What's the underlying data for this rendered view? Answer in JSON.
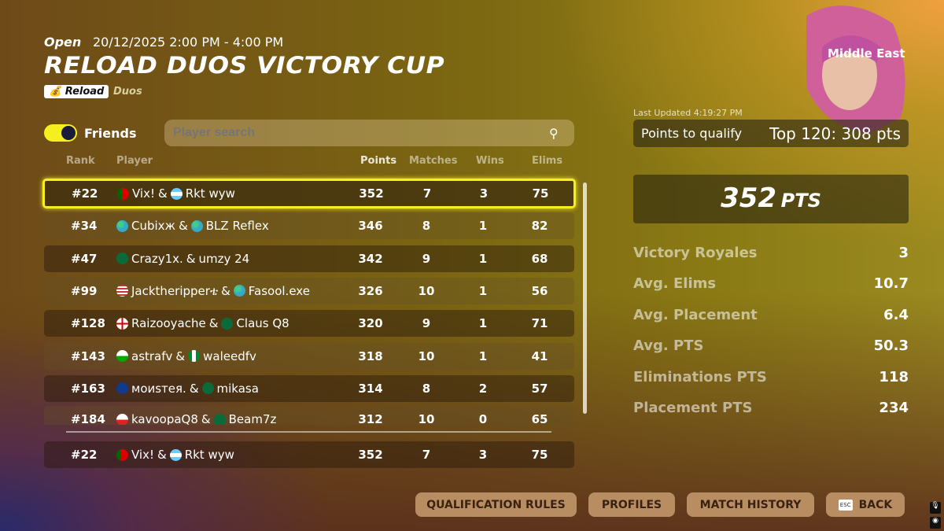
{
  "event": {
    "status": "Open",
    "datetime": "20/12/2025 2:00 PM - 4:00 PM",
    "title": "RELOAD DUOS VICTORY CUP",
    "mode_badge": "Reload",
    "mode_type": "Duos",
    "region": "Middle East"
  },
  "filters": {
    "friends_label": "Friends",
    "friends_on": true,
    "search_placeholder": "Player search",
    "search_value": ""
  },
  "columns": {
    "rank": "Rank",
    "player": "Player",
    "points": "Points",
    "matches": "Matches",
    "wins": "Wins",
    "elims": "Elims"
  },
  "rows": [
    {
      "rank": "#22",
      "p1": "Vix!",
      "f1": "portugal",
      "p2": "Rkt wyw",
      "f2": "argentina",
      "points": "352",
      "matches": "7",
      "wins": "3",
      "elims": "75",
      "selected": true
    },
    {
      "rank": "#34",
      "p1": "Cubixж",
      "f1": "globe",
      "p2": "BLZ Reflex",
      "f2": "globe",
      "points": "346",
      "matches": "8",
      "wins": "1",
      "elims": "82"
    },
    {
      "rank": "#47",
      "p1": "Crazy1x.",
      "f1": "saudi-arabia",
      "p2": "umzy 24",
      "f2": "",
      "points": "342",
      "matches": "9",
      "wins": "1",
      "elims": "68"
    },
    {
      "rank": "#99",
      "p1": "Jacktheripperቴ",
      "f1": "usa",
      "p2": "Fasool.exe",
      "f2": "globe",
      "points": "326",
      "matches": "10",
      "wins": "1",
      "elims": "56"
    },
    {
      "rank": "#128",
      "p1": "Raizooyache",
      "f1": "england",
      "p2": "Claus Q8",
      "f2": "saudi-arabia",
      "points": "320",
      "matches": "9",
      "wins": "1",
      "elims": "71"
    },
    {
      "rank": "#143",
      "p1": "astrafv",
      "f1": "wales",
      "p2": "waleedfv",
      "f2": "nigeria",
      "points": "318",
      "matches": "10",
      "wins": "1",
      "elims": "41"
    },
    {
      "rank": "#163",
      "p1": "моиsтея.",
      "f1": "uk",
      "p2": "mikasa",
      "f2": "saudi-arabia",
      "points": "314",
      "matches": "8",
      "wins": "2",
      "elims": "57"
    },
    {
      "rank": "#184",
      "p1": "kavoopaQ8",
      "f1": "poland",
      "p2": "Beam7z",
      "f2": "saudi-arabia",
      "points": "312",
      "matches": "10",
      "wins": "0",
      "elims": "65"
    }
  ],
  "pinned": {
    "rank": "#22",
    "p1": "Vix!",
    "f1": "portugal",
    "p2": "Rkt wyw",
    "f2": "argentina",
    "points": "352",
    "matches": "7",
    "wins": "3",
    "elims": "75"
  },
  "summary": {
    "last_updated": "Last Updated 4:19:27 PM",
    "qualify_label": "Points to qualify",
    "qualify_value": "Top 120: 308 pts",
    "total_points": "352",
    "total_unit": "PTS",
    "stats": [
      {
        "label": "Victory Royales",
        "value": "3"
      },
      {
        "label": "Avg. Elims",
        "value": "10.7"
      },
      {
        "label": "Avg. Placement",
        "value": "6.4"
      },
      {
        "label": "Avg. PTS",
        "value": "50.3"
      },
      {
        "label": "Eliminations PTS",
        "value": "118"
      },
      {
        "label": "Placement PTS",
        "value": "234"
      }
    ]
  },
  "buttons": {
    "qualification_rules": "QUALIFICATION RULES",
    "profiles": "PROFILES",
    "match_history": "MATCH HISTORY",
    "back": "BACK",
    "back_key": "ESC"
  },
  "colors": {
    "accent": "#f5ef20",
    "button": "#b88d62",
    "button_text": "#3a2210"
  }
}
